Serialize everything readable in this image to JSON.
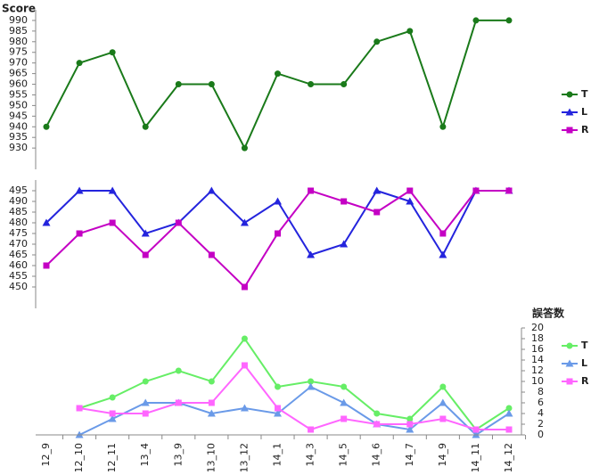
{
  "chart_data": {
    "type": "line",
    "categories": [
      "12_9",
      "12_10",
      "12_11",
      "13_4",
      "13_9",
      "13_10",
      "13_12",
      "14_1",
      "14_3",
      "14_5",
      "14_6",
      "14_7",
      "14_9",
      "14_11",
      "14_12"
    ],
    "panels": [
      {
        "title": "Score",
        "y_axis_side": "left",
        "ylim": [
          920,
          995
        ],
        "yticks": [
          930,
          935,
          940,
          945,
          950,
          955,
          960,
          965,
          970,
          975,
          980,
          985,
          990
        ],
        "series": [
          {
            "name": "T",
            "color": "#1a7a1a",
            "marker": "circle",
            "values": [
              940,
              970,
              975,
              940,
              960,
              960,
              930,
              965,
              960,
              960,
              980,
              985,
              940,
              990,
              990
            ]
          }
        ]
      },
      {
        "y_axis_side": "left",
        "ylim": [
          440,
          500
        ],
        "yticks": [
          450,
          455,
          460,
          465,
          470,
          475,
          480,
          485,
          490,
          495
        ],
        "series": [
          {
            "name": "L",
            "color": "#2424dd",
            "marker": "triangle",
            "values": [
              480,
              495,
              495,
              475,
              480,
              495,
              480,
              490,
              465,
              470,
              495,
              490,
              465,
              495,
              495
            ]
          },
          {
            "name": "R",
            "color": "#c400c4",
            "marker": "square",
            "values": [
              460,
              475,
              480,
              465,
              480,
              465,
              450,
              475,
              495,
              490,
              485,
              495,
              475,
              495,
              495
            ]
          }
        ]
      },
      {
        "title": "誤答数",
        "y_axis_side": "right",
        "ylim": [
          0,
          20
        ],
        "yticks": [
          0,
          2,
          4,
          6,
          8,
          10,
          12,
          14,
          16,
          18,
          20
        ],
        "series": [
          {
            "name": "T",
            "color": "#66ee66",
            "marker": "circle",
            "values": [
              null,
              5,
              7,
              10,
              12,
              10,
              18,
              9,
              10,
              9,
              4,
              3,
              9,
              1,
              5
            ]
          },
          {
            "name": "L",
            "color": "#6a9ae8",
            "marker": "triangle",
            "values": [
              null,
              0,
              3,
              6,
              6,
              4,
              5,
              4,
              9,
              6,
              2,
              1,
              6,
              0,
              4
            ]
          },
          {
            "name": "R",
            "color": "#ff66ff",
            "marker": "square",
            "values": [
              null,
              5,
              4,
              4,
              6,
              6,
              13,
              5,
              1,
              3,
              2,
              2,
              3,
              1,
              1
            ]
          }
        ]
      }
    ]
  }
}
